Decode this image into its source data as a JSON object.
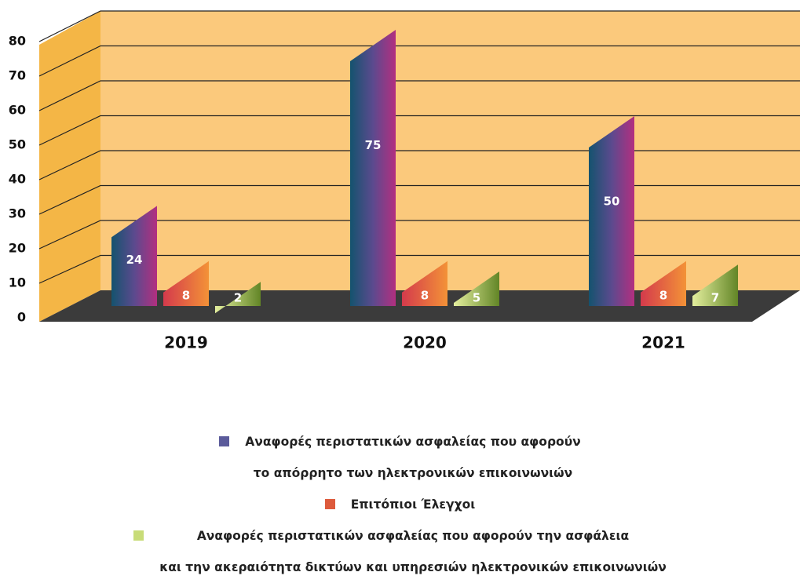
{
  "chart_data": {
    "type": "bar3d",
    "categories": [
      "2019",
      "2020",
      "2021"
    ],
    "series": [
      {
        "name": "Αναφορές περιστατικών ασφαλείας που αφορούν\nτο απόρρητο των ηλεκτρονικών επικοινωνιών",
        "color": "#5b5b9b",
        "values": [
          24,
          75,
          50
        ]
      },
      {
        "name": "Επιτόπιοι Έλεγχοι",
        "color": "#dd5a3c",
        "values": [
          8,
          8,
          8
        ]
      },
      {
        "name": "Αναφορές περιστατικών ασφαλείας που αφορούν την ασφάλεια\nκαι την ακεραιότητα δικτύων και υπηρεσιών ηλεκτρονικών  επικοινωνιών",
        "color": "#c8dc78",
        "values": [
          2,
          5,
          7
        ]
      }
    ],
    "ylim": [
      0,
      80
    ],
    "yticks": [
      0,
      10,
      20,
      30,
      40,
      50,
      60,
      70,
      80
    ],
    "grid": true
  }
}
